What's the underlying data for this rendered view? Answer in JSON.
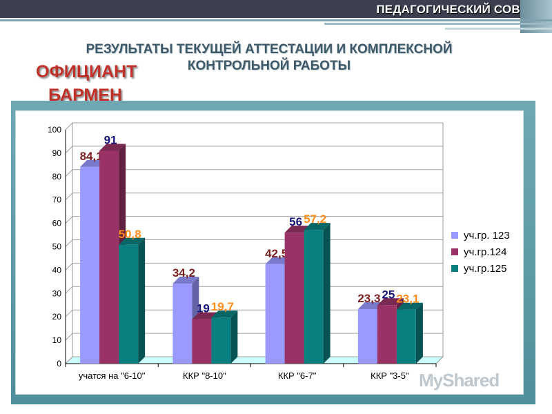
{
  "header": {
    "title": "ПЕДАГОГИЧЕСКИЙ СОВЕТ",
    "heading_line1": "РЕЗУЛЬТАТЫ ТЕКУЩЕЙ АТТЕСТАЦИИ И КОМПЛЕКСНОЙ",
    "heading_line2": "КОНТРОЛЬНОЙ РАБОТЫ",
    "sub1": "ОФИЦИАНТ",
    "sub2": "БАРМЕН"
  },
  "colors": {
    "series1": "#9999ff",
    "series2": "#993366",
    "series3": "#0a7f7f",
    "label1": "#7a1f1f",
    "label2": "#14147a",
    "label3": "#ff8c1a"
  },
  "watermark": "MyShared",
  "chart_data": {
    "type": "bar",
    "categories": [
      "учатся на \"6-10\"",
      "ККР \"8-10\"",
      "ККР \"6-7\"",
      "ККР \"3-5\""
    ],
    "series": [
      {
        "name": "уч.гр. 123",
        "values": [
          84.1,
          34.2,
          42.5,
          23.3
        ],
        "labels": [
          "84,1",
          "34,2",
          "42,5",
          "23,3"
        ]
      },
      {
        "name": "уч.гр.124",
        "values": [
          91,
          19,
          56,
          25
        ],
        "labels": [
          "91",
          "19",
          "56",
          "25"
        ]
      },
      {
        "name": "уч.гр.125",
        "values": [
          50.8,
          19.7,
          57.2,
          23.1
        ],
        "labels": [
          "50,8",
          "19,7",
          "57,2",
          "23,1"
        ]
      }
    ],
    "ylim": [
      0,
      100
    ],
    "yticks": [
      "0",
      "10",
      "20",
      "30",
      "40",
      "50",
      "60",
      "70",
      "80",
      "90",
      "100"
    ],
    "grid": true,
    "legend": "right"
  }
}
